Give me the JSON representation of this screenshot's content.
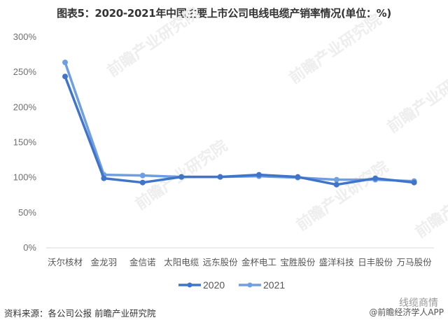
{
  "title": "图表5：2020-2021年中国主要上市公司电线电缆产销率情况(单位：%)",
  "source": "资料来源：各公司公报 前瞻产业研究院",
  "credit_top": "线缆商情",
  "credit": "@前瞻经济学人APP",
  "watermark": "前瞻产业研究院",
  "colors": {
    "series_2020": "#3f74c9",
    "series_2021": "#6f9fe0",
    "axis": "#d9d9d9"
  },
  "chart_data": {
    "type": "line",
    "title": "图表5：2020-2021年中国主要上市公司电线电缆产销率情况(单位：%)",
    "xlabel": "",
    "ylabel": "",
    "ylim": [
      0,
      300
    ],
    "yticks": [
      "0%",
      "50%",
      "100%",
      "150%",
      "200%",
      "250%",
      "300%"
    ],
    "grid": false,
    "legend_position": "bottom",
    "categories": [
      "沃尔核材",
      "金龙羽",
      "金信诺",
      "太阳电缆",
      "远东股份",
      "金杯电工",
      "宝胜股份",
      "盛洋科技",
      "日丰股份",
      "万马股份"
    ],
    "series": [
      {
        "name": "2020",
        "values": [
          243,
          98,
          92,
          100,
          100,
          103,
          100,
          89,
          98,
          92
        ]
      },
      {
        "name": "2021",
        "values": [
          263,
          103,
          102,
          100,
          100,
          101,
          99,
          96,
          96,
          94
        ]
      }
    ]
  }
}
